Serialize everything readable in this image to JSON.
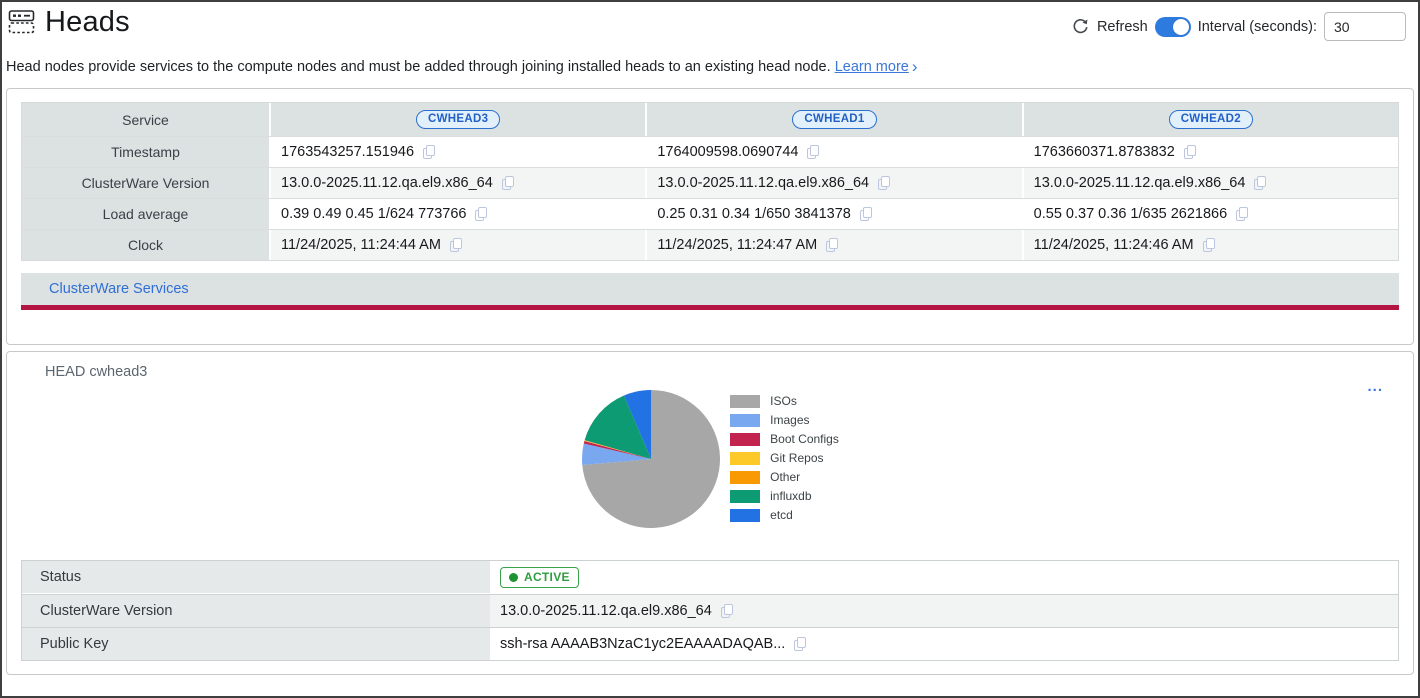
{
  "header": {
    "title": "Heads",
    "refresh_label": "Refresh",
    "refresh_toggle_on": true,
    "interval_label": "Interval (seconds):",
    "interval_value": "30"
  },
  "description": {
    "text": "Head nodes provide services to the compute nodes and must be added through joining installed heads to an existing head node.",
    "learn_more_label": "Learn more",
    "chevron": "›"
  },
  "services_table": {
    "row_labels": {
      "service": "Service",
      "timestamp": "Timestamp",
      "version": "ClusterWare Version",
      "load": "Load average",
      "clock": "Clock"
    },
    "heads": [
      {
        "name": "CWHEAD3",
        "timestamp": "1763543257.151946",
        "version": "13.0.0-2025.11.12.qa.el9.x86_64",
        "load": "0.39 0.49 0.45 1/624 773766",
        "clock": "11/24/2025, 11:24:44 AM"
      },
      {
        "name": "CWHEAD1",
        "timestamp": "1764009598.0690744",
        "version": "13.0.0-2025.11.12.qa.el9.x86_64",
        "load": "0.25 0.31 0.34 1/650 3841378",
        "clock": "11/24/2025, 11:24:47 AM"
      },
      {
        "name": "CWHEAD2",
        "timestamp": "1763660371.8783832",
        "version": "13.0.0-2025.11.12.qa.el9.x86_64",
        "load": "0.55 0.37 0.36 1/635 2621866",
        "clock": "11/24/2025, 11:24:46 AM"
      }
    ],
    "footer_link_label": "ClusterWare Services"
  },
  "head_detail": {
    "title": "HEAD cwhead3",
    "menu_label": "...",
    "info_table": {
      "status_label": "Status",
      "status_value": "ACTIVE",
      "version_label": "ClusterWare Version",
      "version_value": "13.0.0-2025.11.12.qa.el9.x86_64",
      "public_key_label": "Public Key",
      "public_key_value": "ssh-rsa AAAAB3NzaC1yc2EAAAADAQAB..."
    }
  },
  "chart_data": {
    "type": "pie",
    "labels": [
      "ISOs",
      "Images",
      "Boot Configs",
      "Git Repos",
      "Other",
      "influxdb",
      "etcd"
    ],
    "values": [
      73.6,
      5.0,
      0.6,
      0.1,
      0.1,
      14.2,
      6.4
    ],
    "colors": [
      "#a7a7a7",
      "#79a7f0",
      "#c2234f",
      "#fcc929",
      "#f99a05",
      "#0d9b74",
      "#2372e4"
    ],
    "title": "",
    "legend_position": "right",
    "start_angle_deg": -90,
    "direction": "clockwise"
  },
  "colors": {
    "accent_blue": "#2e7be0",
    "link_blue": "#3b76d9",
    "crimson_bar": "#b31441",
    "table_gray": "#dce1e2",
    "status_green": "#2f9e3e"
  }
}
